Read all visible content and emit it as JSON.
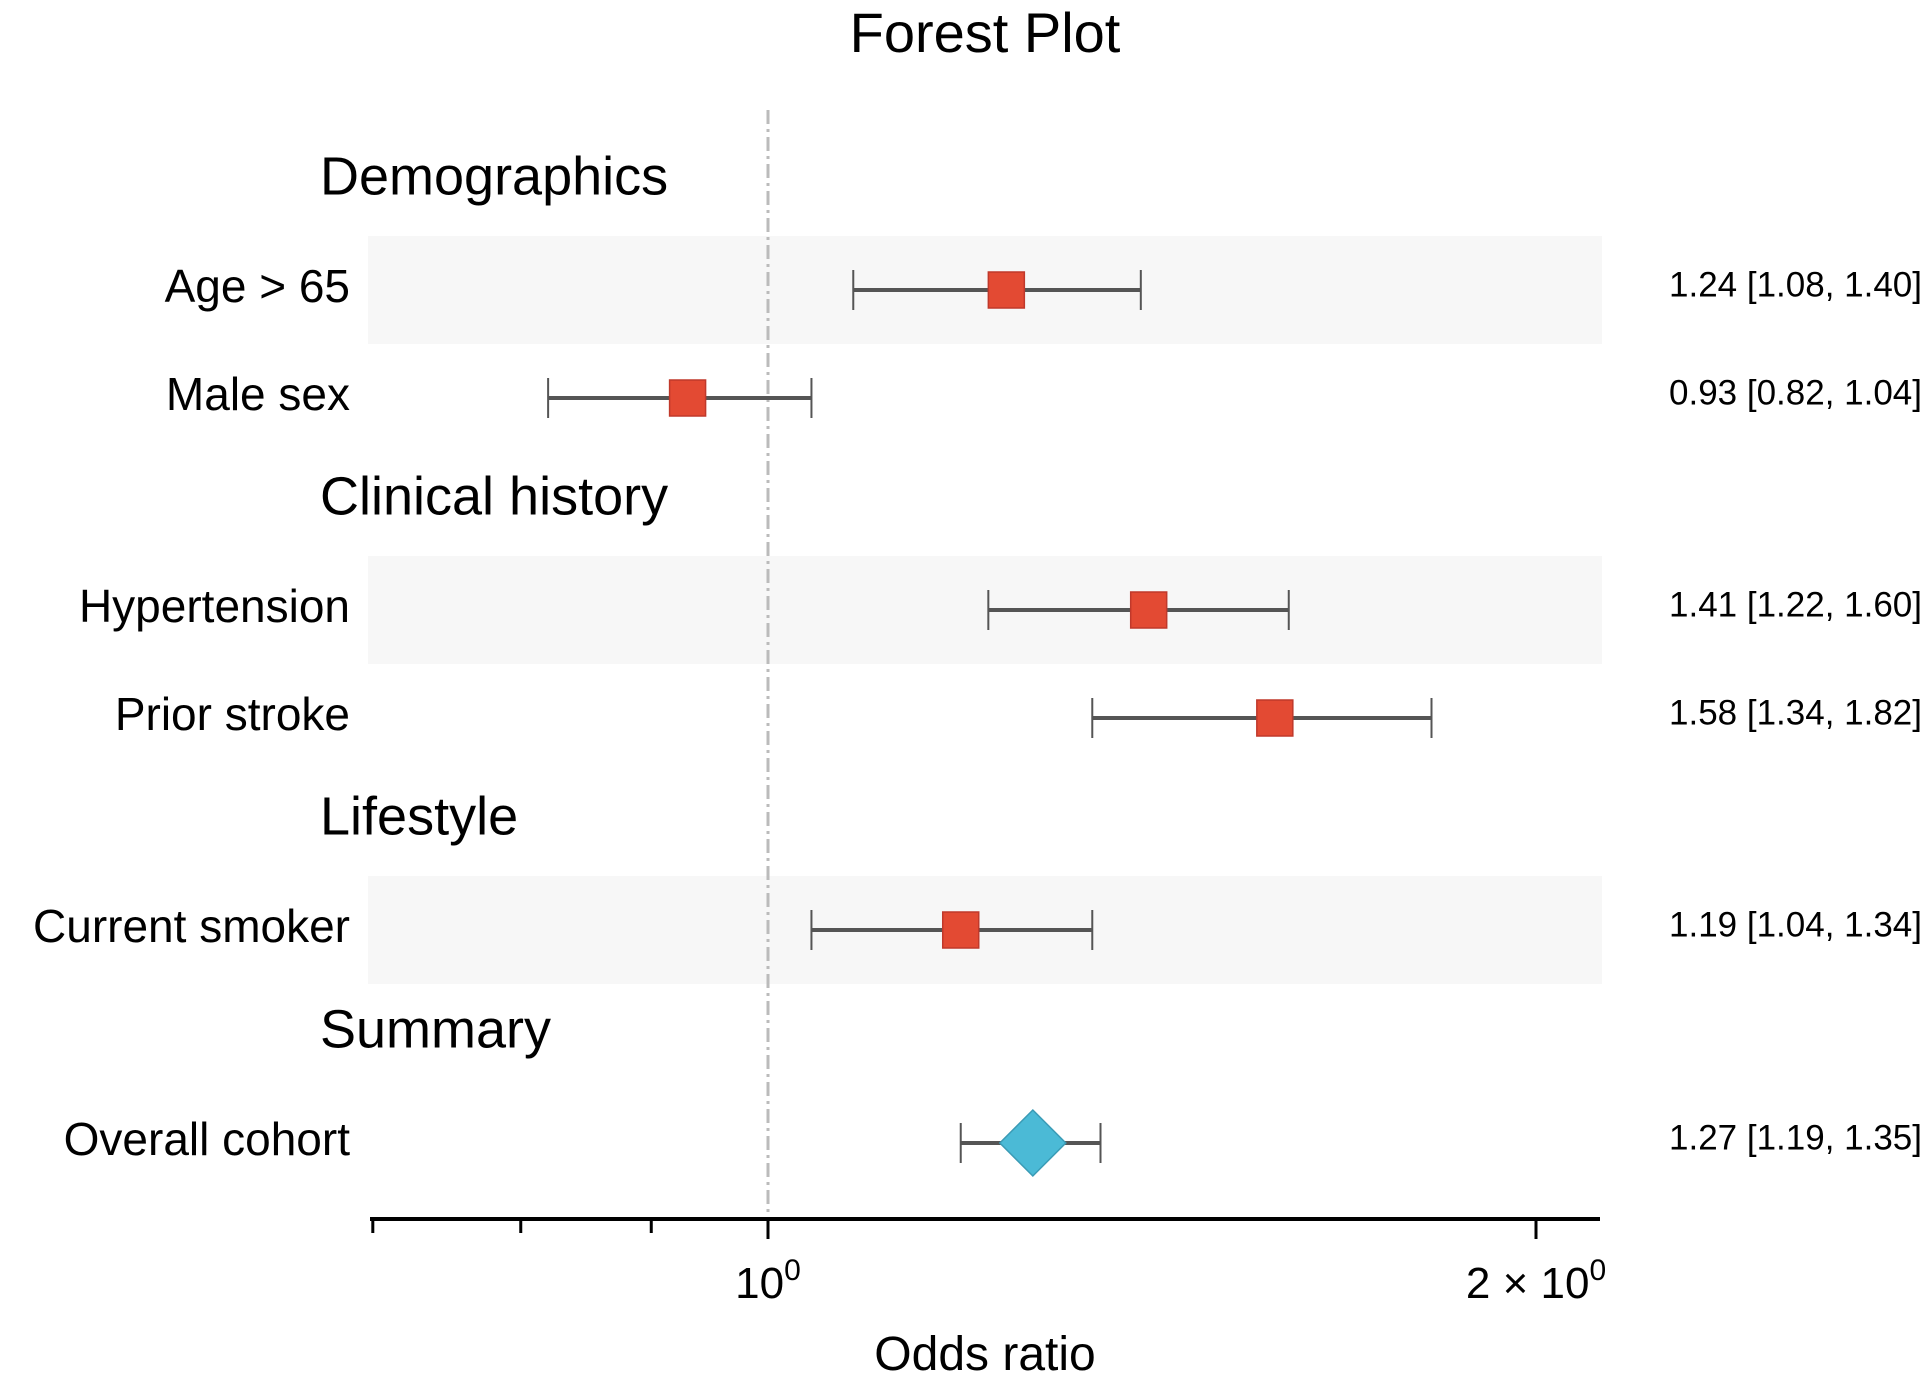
{
  "chart_data": {
    "type": "forest",
    "title": "Forest Plot",
    "xlabel": "Odds ratio",
    "x_scale": "log",
    "xlim": [
      0.7,
      2.08
    ],
    "x_ticks_major": [
      {
        "value": 1,
        "base": "10",
        "exp": "0"
      },
      {
        "value": 2,
        "base": "2 × 10",
        "exp": "0"
      }
    ],
    "x_ticks_minor": [
      0.7,
      0.8,
      0.9
    ],
    "reference_line": 1.0,
    "colors": {
      "estimate": "#e34a33",
      "summary": "#4bbad6",
      "ci_line": "#555555",
      "band": "#f7f7f7",
      "ref_line": "#bbbbbb"
    },
    "groups": [
      {
        "name": "Demographics",
        "rows": [
          {
            "label": "Age > 65",
            "or": 1.24,
            "lower": 1.08,
            "upper": 1.4,
            "text": "1.24 [1.08, 1.40]",
            "shaded": true
          },
          {
            "label": "Male sex",
            "or": 0.93,
            "lower": 0.82,
            "upper": 1.04,
            "text": "0.93 [0.82, 1.04]",
            "shaded": false
          }
        ]
      },
      {
        "name": "Clinical history",
        "rows": [
          {
            "label": "Hypertension",
            "or": 1.41,
            "lower": 1.22,
            "upper": 1.6,
            "text": "1.41 [1.22, 1.60]",
            "shaded": true
          },
          {
            "label": "Prior stroke",
            "or": 1.58,
            "lower": 1.34,
            "upper": 1.82,
            "text": "1.58 [1.34, 1.82]",
            "shaded": false
          }
        ]
      },
      {
        "name": "Lifestyle",
        "rows": [
          {
            "label": "Current smoker",
            "or": 1.19,
            "lower": 1.04,
            "upper": 1.34,
            "text": "1.19 [1.04, 1.34]",
            "shaded": true
          }
        ]
      },
      {
        "name": "Summary",
        "rows": [
          {
            "label": "Overall cohort",
            "or": 1.27,
            "lower": 1.19,
            "upper": 1.35,
            "text": "1.27 [1.19, 1.35]",
            "shaded": false,
            "summary": true
          }
        ]
      }
    ]
  }
}
